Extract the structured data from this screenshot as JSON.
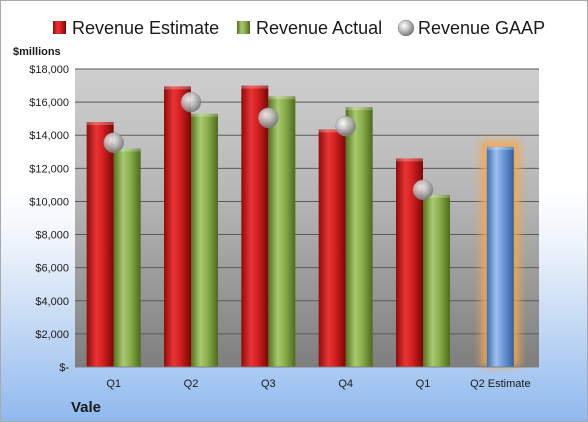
{
  "chart_data": {
    "type": "bar",
    "company": "Vale",
    "y_unit_label": "$millions",
    "categories": [
      "Q1",
      "Q2",
      "Q3",
      "Q4",
      "Q1",
      "Q2 Estimate"
    ],
    "series": [
      {
        "name": "Revenue Estimate",
        "kind": "bar",
        "color": "#d42020",
        "values": [
          14800,
          16950,
          17000,
          14350,
          12600,
          null
        ]
      },
      {
        "name": "Revenue Actual",
        "kind": "bar",
        "color": "#8db04e",
        "values": [
          13200,
          15300,
          16350,
          15700,
          10400,
          null
        ]
      },
      {
        "name": "Revenue GAAP",
        "kind": "marker",
        "color": "#b5b5b5",
        "values": [
          13550,
          16000,
          15050,
          14550,
          10700,
          null
        ]
      },
      {
        "name": "Q2 Estimate",
        "kind": "highlight-bar",
        "color": "#6d9bd8",
        "glow": "#f6a74a",
        "values": [
          null,
          null,
          null,
          null,
          null,
          13300
        ]
      }
    ],
    "ylim": [
      0,
      18000
    ],
    "y_ticks": [
      0,
      2000,
      4000,
      6000,
      8000,
      10000,
      12000,
      14000,
      16000,
      18000
    ],
    "y_tick_labels": [
      "$-",
      "$2,000",
      "$4,000",
      "$6,000",
      "$8,000",
      "$10,000",
      "$12,000",
      "$14,000",
      "$16,000",
      "$18,000"
    ],
    "grid": true,
    "legend_position": "top",
    "legend": [
      "Revenue Estimate",
      "Revenue Actual",
      "Revenue GAAP"
    ]
  }
}
